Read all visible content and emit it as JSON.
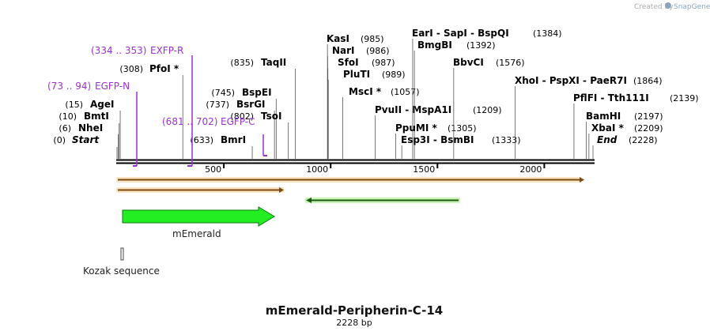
{
  "credit": {
    "prefix": "Created by",
    "brand": "SnapGene"
  },
  "map": {
    "title": "mEmerald-Peripherin-C-14",
    "length_label": "2228 bp",
    "length": 2228
  },
  "ticks": [
    "500",
    "1000",
    "1500",
    "2000"
  ],
  "tick_values": [
    500,
    1000,
    1500,
    2000
  ],
  "left_sites": [
    {
      "pos": "(0)",
      "name": "Start",
      "bp": 0,
      "italic": true
    },
    {
      "pos": "(6)",
      "name": "NheI",
      "bp": 6
    },
    {
      "pos": "(10)",
      "name": "BmtI",
      "bp": 10
    },
    {
      "pos": "(15)",
      "name": "AgeI",
      "bp": 15
    },
    {
      "pos": "(308)",
      "name": "PfoI *",
      "bp": 308
    },
    {
      "pos": "(633)",
      "name": "BmrI",
      "bp": 633
    },
    {
      "pos": "(737)",
      "name": "BsrGI",
      "bp": 737
    },
    {
      "pos": "(745)",
      "name": "BspEI",
      "bp": 745
    },
    {
      "pos": "(802)",
      "name": "TsoI",
      "bp": 802
    },
    {
      "pos": "(835)",
      "name": "TaqII",
      "bp": 835
    }
  ],
  "right_sites": [
    {
      "name": "KasI",
      "pos": "(985)",
      "bp": 985
    },
    {
      "name": "NarI",
      "pos": "(986)",
      "bp": 986
    },
    {
      "name": "SfoI",
      "pos": "(987)",
      "bp": 987
    },
    {
      "name": "PluTI",
      "pos": "(989)",
      "bp": 989
    },
    {
      "name": "MscI *",
      "pos": "(1057)",
      "bp": 1057
    },
    {
      "name": "PvuII  - MspA1I",
      "pos": "(1209)",
      "bp": 1209
    },
    {
      "name": "EarI  - SapI  - BspQI",
      "pos": "(1384)",
      "bp": 1384
    },
    {
      "name": "BmgBI",
      "pos": "(1392)",
      "bp": 1392
    },
    {
      "name": "PpuMI *",
      "pos": "(1305)",
      "bp": 1305
    },
    {
      "name": "Esp3I  - BsmBI",
      "pos": "(1333)",
      "bp": 1333
    },
    {
      "name": "BbvCI",
      "pos": "(1576)",
      "bp": 1576
    },
    {
      "name": "XhoI  - PspXI  - PaeR7I",
      "pos": "(1864)",
      "bp": 1864
    },
    {
      "name": "PflFI  - Tth111I",
      "pos": "(2139)",
      "bp": 2139
    },
    {
      "name": "BamHI",
      "pos": "(2197)",
      "bp": 2197
    },
    {
      "name": "XbaI *",
      "pos": "(2209)",
      "bp": 2209
    },
    {
      "name": "End",
      "pos": "(2228)",
      "bp": 2228,
      "italic": true
    }
  ],
  "primers": [
    {
      "range": "(334 .. 353)",
      "name": "EXFP-R"
    },
    {
      "range": "(73 .. 94)",
      "name": "EGFP-N"
    },
    {
      "range": "(681 .. 702)",
      "name": "EGFP-C"
    }
  ],
  "features": [
    {
      "name": "mEmerald",
      "color": "#22ee22"
    },
    {
      "name": "Kozak sequence",
      "color": "#cccccc"
    }
  ],
  "colors": {
    "orf": "#f0a030",
    "primer": "#9b30d9",
    "green": "#22ee22"
  }
}
